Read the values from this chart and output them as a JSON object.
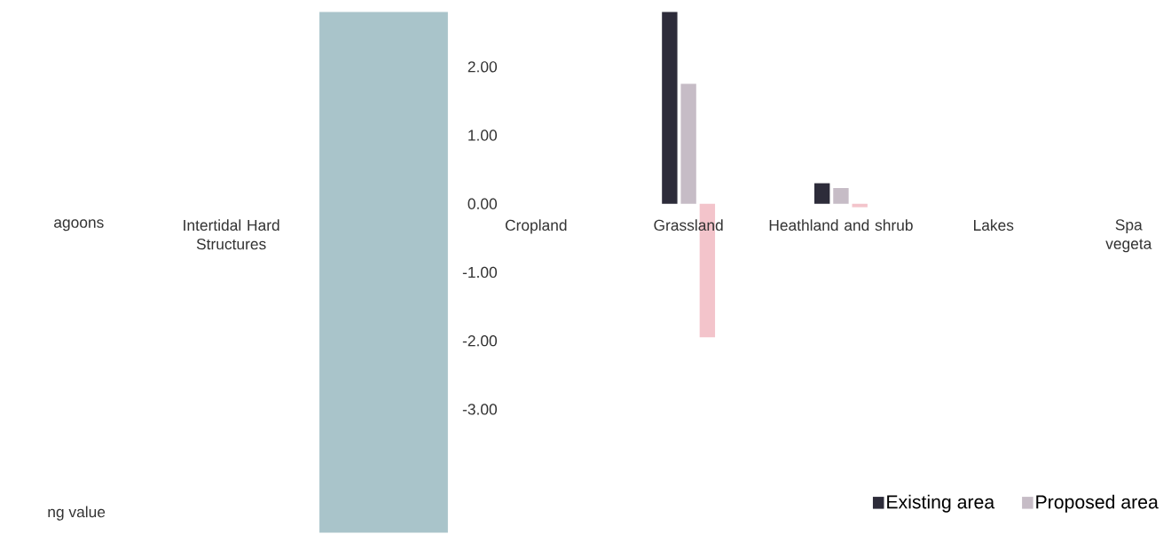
{
  "chart_data": {
    "type": "bar",
    "categories": [
      "agoons",
      "Intertidal Hard Structures",
      null,
      "Cropland",
      "Grassland",
      "Heathland and shrub",
      "Lakes",
      "Spa vegeta"
    ],
    "series": [
      {
        "name": "Existing area",
        "color": "#2d2c3a",
        "values": [
          null,
          null,
          null,
          null,
          2.8,
          0.3,
          null,
          null
        ]
      },
      {
        "name": "Proposed area",
        "color": "#c6bcc6",
        "values": [
          null,
          null,
          null,
          null,
          1.75,
          0.23,
          null,
          null
        ]
      },
      {
        "color": "#f3c4cb",
        "values": [
          null,
          null,
          null,
          null,
          -1.95,
          -0.05,
          null,
          null
        ]
      },
      {
        "color": "#a9c4ca",
        "base": [
          null,
          null,
          -4.8,
          null,
          null,
          null,
          null,
          null
        ],
        "values": [
          null,
          null,
          7.6,
          null,
          null,
          null,
          null,
          null
        ]
      }
    ],
    "ylim": [
      -4.8,
      2.8
    ],
    "yticks": [
      {
        "value": -3,
        "label": "-3.00"
      },
      {
        "value": -2,
        "label": "-2.00"
      },
      {
        "value": -1,
        "label": "-1.00"
      },
      {
        "value": 0,
        "label": "0.00"
      },
      {
        "value": 1,
        "label": "1.00"
      },
      {
        "value": 2,
        "label": "2.00"
      }
    ],
    "legend": "bottom right",
    "annotations": [
      "ng value"
    ]
  }
}
